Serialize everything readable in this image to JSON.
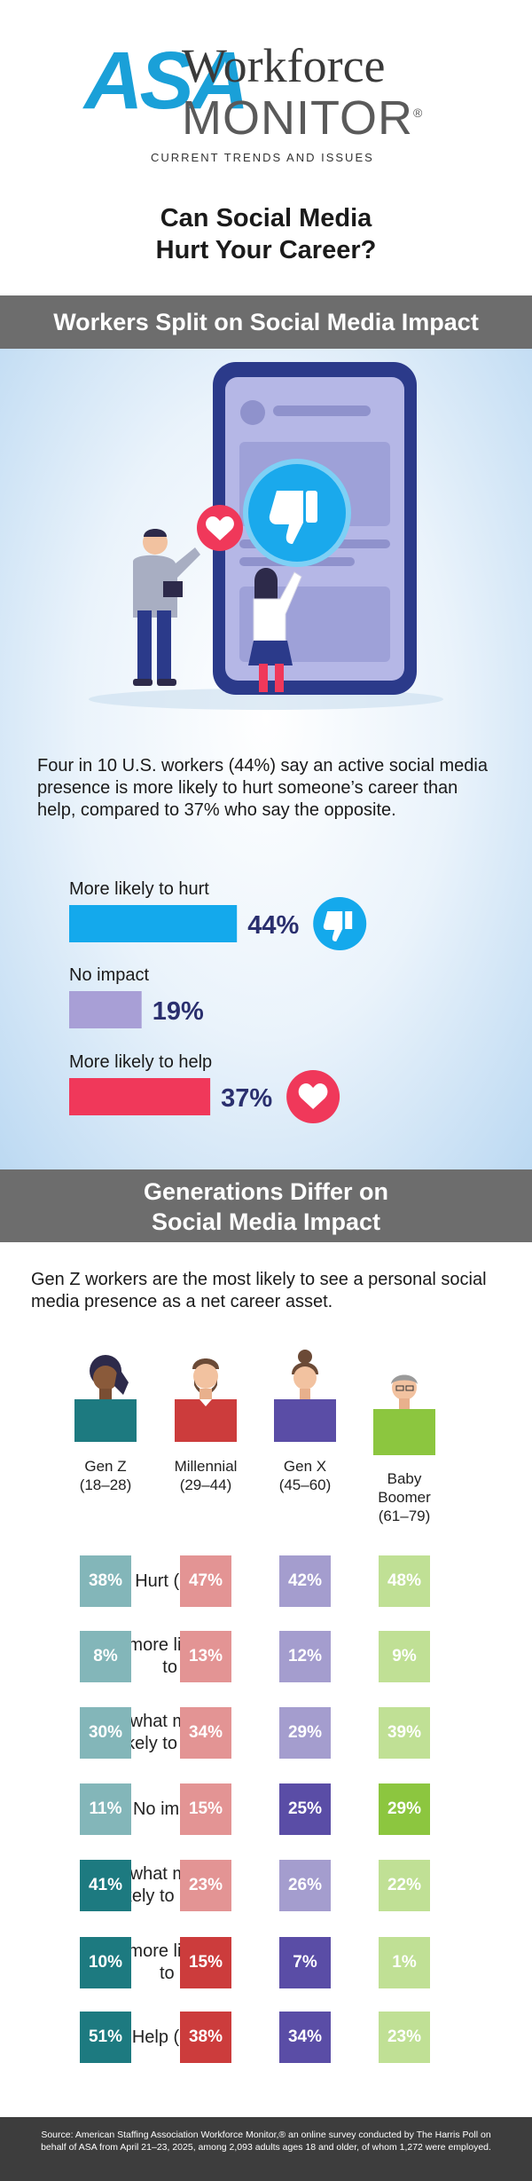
{
  "header": {
    "logo_asa": "ASA",
    "logo_workforce": "Workforce",
    "logo_monitor": "MONITOR",
    "logo_reg": "®",
    "tagline": "CURRENT TRENDS AND ISSUES",
    "title_line1": "Can Social Media",
    "title_line2": "Hurt Your Career?"
  },
  "section1": {
    "heading": "Workers Split on Social Media Impact",
    "intro": "Four in 10 U.S. workers (44%) say an active social media presence is more likely to hurt someone’s career than help, compared to 37% who say the opposite."
  },
  "section2": {
    "heading_line1": "Generations Differ on",
    "heading_line2": "Social Media Impact",
    "intro": "Gen Z workers are the most likely to see a personal social media presence as a net career asset."
  },
  "colors": {
    "hurt": "#14a9ec",
    "none": "#a89fd6",
    "help": "#f0385a",
    "genz": "#1d7a80",
    "millennial": "#cc3c3c",
    "genx": "#5a4da6",
    "boomer": "#8cc63f"
  },
  "chart_data": [
    {
      "type": "bar",
      "orientation": "horizontal",
      "categories": [
        "More likely to hurt",
        "No impact",
        "More likely to help"
      ],
      "values": [
        44,
        19,
        37
      ],
      "value_labels": [
        "44%",
        "19%",
        "37%"
      ],
      "icons": [
        "thumbs-down-icon",
        "",
        "heart-icon"
      ],
      "xlim": [
        0,
        100
      ]
    },
    {
      "type": "heatmap",
      "columns": [
        {
          "name": "Gen Z",
          "ages": "(18–28)"
        },
        {
          "name": "Millennial",
          "ages": "(29–44)"
        },
        {
          "name": "Gen X",
          "ages": "(45–60)"
        },
        {
          "name": "Baby Boomer",
          "ages": "(61–79)"
        }
      ],
      "rows": [
        {
          "label": "Hurt (Net)",
          "values": [
            38,
            47,
            42,
            48
          ],
          "emphasis": "light"
        },
        {
          "label": "Much more likely to hurt",
          "values": [
            8,
            13,
            12,
            9
          ],
          "emphasis": "light"
        },
        {
          "label": "Somewhat more likely to hurt",
          "values": [
            30,
            34,
            29,
            39
          ],
          "emphasis": "light"
        },
        {
          "label": "No impact",
          "values": [
            11,
            15,
            25,
            29
          ],
          "emphasis": "mixed"
        },
        {
          "label": "Somewhat more likely to help",
          "values": [
            41,
            23,
            26,
            22
          ],
          "emphasis": "mixed"
        },
        {
          "label": "Much more likely to help",
          "values": [
            10,
            15,
            7,
            1
          ],
          "emphasis": "mixed"
        },
        {
          "label": "Help (Net)",
          "values": [
            51,
            38,
            34,
            23
          ],
          "emphasis": "mixed"
        }
      ],
      "cell_labels": [
        [
          "38%",
          "47%",
          "42%",
          "48%"
        ],
        [
          "8%",
          "13%",
          "12%",
          "9%"
        ],
        [
          "30%",
          "34%",
          "29%",
          "39%"
        ],
        [
          "11%",
          "15%",
          "25%",
          "29%"
        ],
        [
          "41%",
          "23%",
          "26%",
          "22%"
        ],
        [
          "10%",
          "15%",
          "7%",
          "1%"
        ],
        [
          "51%",
          "38%",
          "34%",
          "23%"
        ]
      ]
    }
  ],
  "footer": {
    "source": "Source: American Staffing Association Workforce Monitor,® an online survey conducted by The Harris Poll on behalf of ASA from April 21–23, 2025, among 2,093 adults ages 18 and older, of whom 1,272 were employed."
  }
}
